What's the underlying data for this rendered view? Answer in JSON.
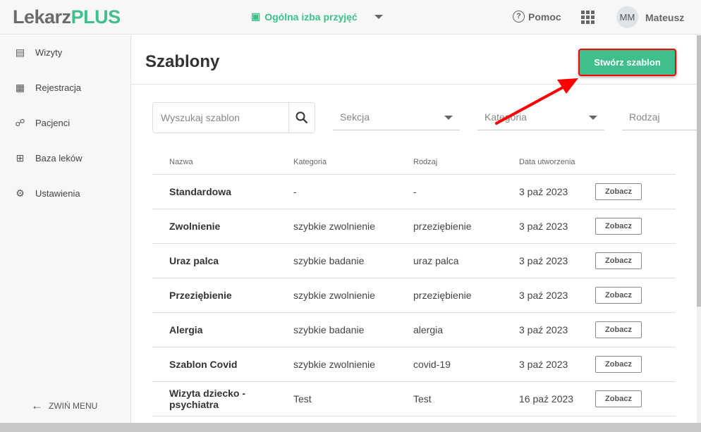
{
  "header": {
    "logo_a": "Lekarz",
    "logo_b": "PLUS",
    "ward": "Ogólna izba przyjęć",
    "help": "Pomoc",
    "avatar": "MM",
    "user": "Mateusz"
  },
  "sidebar": {
    "items": [
      {
        "label": "Wizyty",
        "icon": "document-check-icon"
      },
      {
        "label": "Rejestracja",
        "icon": "calendar-icon"
      },
      {
        "label": "Pacjenci",
        "icon": "people-icon"
      },
      {
        "label": "Baza leków",
        "icon": "medical-kit-icon"
      },
      {
        "label": "Ustawienia",
        "icon": "gear-icon"
      }
    ],
    "collapse": "ZWIŃ MENU"
  },
  "main": {
    "title": "Szablony",
    "create": "Stwórz szablon",
    "search_placeholder": "Wyszukaj szablon",
    "filters": [
      "Sekcja",
      "Kategoria",
      "Rodzaj"
    ],
    "columns": [
      "Nazwa",
      "Kategoria",
      "Rodzaj",
      "Data utworzenia"
    ],
    "view": "Zobacz",
    "rows": [
      [
        "Standardowa",
        "-",
        "-",
        "3 paź 2023"
      ],
      [
        "Zwolnienie",
        "szybkie zwolnienie",
        "przeziębienie",
        "3 paź 2023"
      ],
      [
        "Uraz palca",
        "szybkie badanie",
        "uraz palca",
        "3 paź 2023"
      ],
      [
        "Przeziębienie",
        "szybkie zwolnienie",
        "przeziębienie",
        "3 paź 2023"
      ],
      [
        "Alergia",
        "szybkie badanie",
        "alergia",
        "3 paź 2023"
      ],
      [
        "Szablon Covid",
        "szybkie zwolnienie",
        "covid-19",
        "3 paź 2023"
      ],
      [
        "Wizyta dziecko - psychiatra",
        "Test",
        "Test",
        "16 paź 2023"
      ]
    ]
  },
  "colors": {
    "brand": "#3fbf8c",
    "annotation": "#ff0000"
  }
}
